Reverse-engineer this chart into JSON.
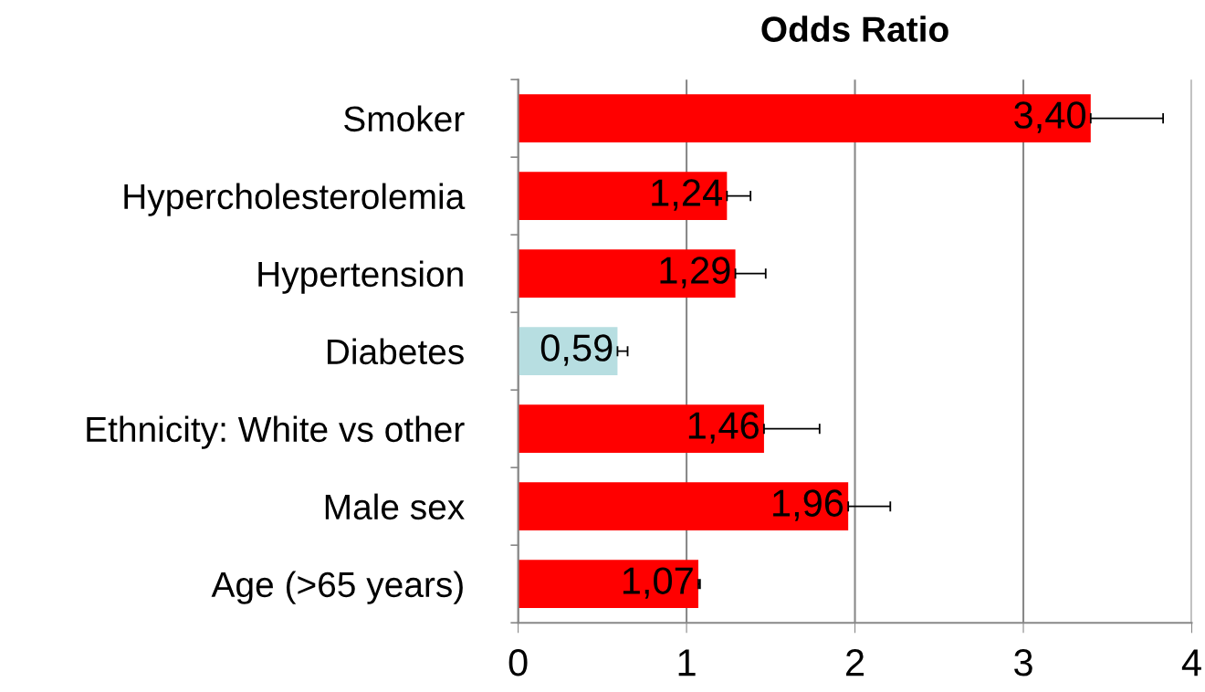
{
  "chart_data": {
    "type": "bar",
    "orientation": "horizontal",
    "title": "Odds Ratio",
    "categories": [
      "Smoker",
      "Hypercholesterolemia",
      "Hypertension",
      "Diabetes",
      "Ethnicity: White vs other",
      "Male sex",
      "Age (>65 years)"
    ],
    "values": [
      3.4,
      1.24,
      1.29,
      0.59,
      1.46,
      1.96,
      1.07
    ],
    "value_labels": [
      "3,40",
      "1,24",
      "1,29",
      "0,59",
      "1,46",
      "1,96",
      "1,07"
    ],
    "colors": [
      "#ff0000",
      "#ff0000",
      "#ff0000",
      "#b7dee1",
      "#ff0000",
      "#ff0000",
      "#ff0000"
    ],
    "errors": [
      [
        3.4,
        3.83
      ],
      [
        1.24,
        1.38
      ],
      [
        1.29,
        1.47
      ],
      [
        0.59,
        0.65
      ],
      [
        1.46,
        1.79
      ],
      [
        1.96,
        2.21
      ],
      [
        1.07,
        1.08
      ]
    ],
    "xlim": [
      0,
      4
    ],
    "xticks": [
      0,
      1,
      2,
      3,
      4
    ],
    "grid": "x"
  }
}
